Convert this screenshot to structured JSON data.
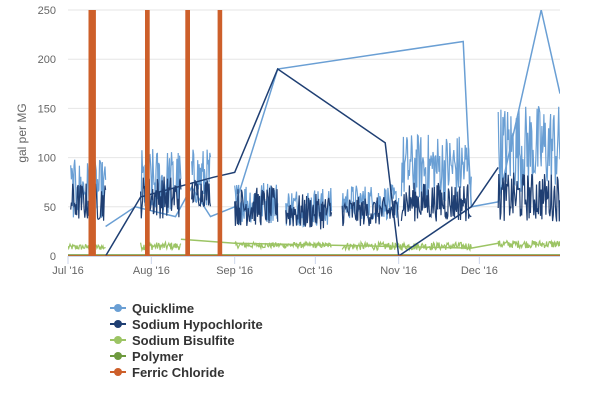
{
  "chart_data": {
    "type": "line",
    "title": "",
    "xlabel": "",
    "ylabel": "gal per MG",
    "ylim": [
      0,
      250
    ],
    "y_ticks": [
      0,
      50,
      100,
      150,
      200,
      250
    ],
    "x_range": [
      "2016-07-01",
      "2016-12-31"
    ],
    "x_ticks": [
      {
        "date": "2016-07-01",
        "label": "Jul '16"
      },
      {
        "date": "2016-08-01",
        "label": "Aug '16"
      },
      {
        "date": "2016-09-01",
        "label": "Sep '16"
      },
      {
        "date": "2016-10-01",
        "label": "Oct '16"
      },
      {
        "date": "2016-11-01",
        "label": "Nov '16"
      },
      {
        "date": "2016-12-01",
        "label": "Dec '16"
      }
    ],
    "grid": {
      "horizontal": true,
      "vertical": false
    },
    "legend": {
      "position": "bottom-left"
    },
    "series": [
      {
        "name": "Quicklime",
        "color": "#6a9fd4",
        "segments": [
          {
            "from": "2016-07-02",
            "to": "2016-07-15",
            "base": 68,
            "amplitude": 30
          },
          {
            "from": "2016-07-28",
            "to": "2016-08-12",
            "base": 75,
            "amplitude": 35
          },
          {
            "from": "2016-08-16",
            "to": "2016-08-23",
            "base": 80,
            "amplitude": 30
          },
          {
            "from": "2016-09-01",
            "to": "2016-09-17",
            "base": 55,
            "amplitude": 22
          },
          {
            "from": "2016-09-20",
            "to": "2016-10-07",
            "base": 50,
            "amplitude": 20
          },
          {
            "from": "2016-10-11",
            "to": "2016-11-01",
            "base": 55,
            "amplitude": 18
          },
          {
            "from": "2016-11-02",
            "to": "2016-11-28",
            "base": 90,
            "amplitude": 35
          },
          {
            "from": "2016-12-08",
            "to": "2016-12-31",
            "base": 110,
            "amplitude": 45
          }
        ],
        "points": [
          {
            "x": "2016-07-15",
            "y": 30
          },
          {
            "x": "2016-07-26",
            "y": 50
          },
          {
            "x": "2016-08-10",
            "y": 40
          },
          {
            "x": "2016-08-16",
            "y": 70
          },
          {
            "x": "2016-08-23",
            "y": 40
          },
          {
            "x": "2016-09-01",
            "y": 50
          },
          {
            "x": "2016-09-17",
            "y": 190
          },
          {
            "x": "2016-11-25",
            "y": 218
          },
          {
            "x": "2016-11-28",
            "y": 50
          },
          {
            "x": "2016-12-08",
            "y": 55
          },
          {
            "x": "2016-12-24",
            "y": 250
          },
          {
            "x": "2016-12-31",
            "y": 165
          }
        ]
      },
      {
        "name": "Sodium Hypochlorite",
        "color": "#1f3f73",
        "segments": [
          {
            "from": "2016-07-02",
            "to": "2016-07-15",
            "base": 55,
            "amplitude": 20
          },
          {
            "from": "2016-07-28",
            "to": "2016-08-12",
            "base": 60,
            "amplitude": 22
          },
          {
            "from": "2016-08-16",
            "to": "2016-08-23",
            "base": 65,
            "amplitude": 15
          },
          {
            "from": "2016-09-01",
            "to": "2016-09-17",
            "base": 50,
            "amplitude": 20
          },
          {
            "from": "2016-09-20",
            "to": "2016-10-07",
            "base": 45,
            "amplitude": 18
          },
          {
            "from": "2016-10-11",
            "to": "2016-11-01",
            "base": 45,
            "amplitude": 15
          },
          {
            "from": "2016-11-02",
            "to": "2016-11-28",
            "base": 55,
            "amplitude": 20
          },
          {
            "from": "2016-12-08",
            "to": "2016-12-31",
            "base": 60,
            "amplitude": 25
          }
        ],
        "points": [
          {
            "x": "2016-07-15",
            "y": 0
          },
          {
            "x": "2016-07-28",
            "y": 60
          },
          {
            "x": "2016-08-24",
            "y": 80
          },
          {
            "x": "2016-09-01",
            "y": 85
          },
          {
            "x": "2016-09-17",
            "y": 190
          },
          {
            "x": "2016-10-27",
            "y": 115
          },
          {
            "x": "2016-11-01",
            "y": 0
          },
          {
            "x": "2016-11-28",
            "y": 50
          },
          {
            "x": "2016-12-08",
            "y": 90
          }
        ]
      },
      {
        "name": "Sodium Bisulfite",
        "color": "#9cc464",
        "segments": [
          {
            "from": "2016-07-01",
            "to": "2016-07-15",
            "base": 9,
            "amplitude": 3
          },
          {
            "from": "2016-07-28",
            "to": "2016-08-12",
            "base": 10,
            "amplitude": 4
          },
          {
            "from": "2016-09-01",
            "to": "2016-10-07",
            "base": 11,
            "amplitude": 3
          },
          {
            "from": "2016-10-11",
            "to": "2016-11-28",
            "base": 10,
            "amplitude": 4
          },
          {
            "from": "2016-12-08",
            "to": "2016-12-31",
            "base": 12,
            "amplitude": 4
          }
        ],
        "points": [
          {
            "x": "2016-08-12",
            "y": 17
          },
          {
            "x": "2016-09-01",
            "y": 13
          },
          {
            "x": "2016-11-28",
            "y": 8
          },
          {
            "x": "2016-12-08",
            "y": 13
          }
        ]
      },
      {
        "name": "Polymer",
        "color": "#6e9a3e",
        "points": [
          {
            "x": "2016-07-01",
            "y": 1
          },
          {
            "x": "2016-12-31",
            "y": 1
          }
        ]
      },
      {
        "name": "Ferric Chloride",
        "color": "#cd5f2a",
        "spikes": [
          {
            "from": "2016-07-09",
            "to": "2016-07-11",
            "y": 250
          },
          {
            "from": "2016-07-30",
            "to": "2016-07-31",
            "y": 250
          },
          {
            "from": "2016-08-14",
            "to": "2016-08-15",
            "y": 250
          },
          {
            "from": "2016-08-26",
            "to": "2016-08-27",
            "y": 250
          }
        ],
        "points": [
          {
            "x": "2016-07-01",
            "y": 0
          },
          {
            "x": "2016-12-31",
            "y": 0
          }
        ]
      }
    ]
  }
}
